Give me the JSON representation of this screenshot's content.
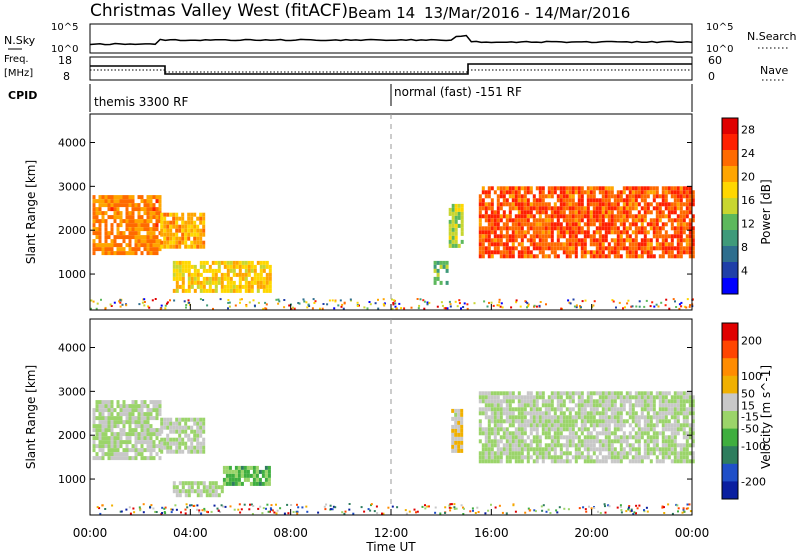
{
  "header": {
    "title": "Christmas Valley West (fitACF)",
    "beam": "Beam 14",
    "date_range": "13/Mar/2016 - 14/Mar/2016"
  },
  "top_panels": {
    "nsky_label": "N.Sky",
    "nsky_ticks": [
      "10^5",
      "10^0"
    ],
    "nsearch_label": "N.Search",
    "nsearch_ticks": [
      "10^5",
      "10^0"
    ],
    "freq_label": "Freq.",
    "freq_unit": "[MHz]",
    "freq_ticks": [
      "18",
      "8"
    ],
    "nave_label": "Nave",
    "nave_ticks": [
      "60",
      "0"
    ],
    "cpid_label": "CPID",
    "cpid_segments": [
      {
        "label": "themis 3300 RF",
        "start_hour": 0,
        "end_hour": 12
      },
      {
        "label": "normal (fast) -151 RF",
        "start_hour": 12,
        "end_hour": 24
      }
    ]
  },
  "chart_data": [
    {
      "type": "heatmap",
      "name": "power",
      "ylabel": "Slant Range [km]",
      "xlabel": "Time UT",
      "xlim": [
        0,
        24
      ],
      "ylim": [
        180,
        4650
      ],
      "x_ticks": [
        "00:00",
        "04:00",
        "08:00",
        "12:00",
        "16:00",
        "20:00",
        "00:00"
      ],
      "x_tick_hours": [
        0,
        4,
        8,
        12,
        16,
        20,
        24
      ],
      "y_ticks": [
        1000,
        2000,
        3000,
        4000
      ],
      "colorbar": {
        "label": "Power [dB]",
        "range": [
          0,
          30
        ],
        "ticks": [
          "4",
          "8",
          "12",
          "16",
          "20",
          "24",
          "28"
        ],
        "tick_values": [
          4,
          8,
          12,
          16,
          20,
          24,
          28
        ],
        "colors": [
          "#0000ff",
          "#1f3fa8",
          "#2e6e8e",
          "#3f9a7a",
          "#5cb85c",
          "#c8d630",
          "#ffd700",
          "#ffa500",
          "#ff6a00",
          "#ff2000",
          "#e00000"
        ]
      },
      "regions": [
        {
          "x": [
            0.1,
            2.8
          ],
          "y": [
            1500,
            2800
          ],
          "value": 22
        },
        {
          "x": [
            2.8,
            4.5
          ],
          "y": [
            1600,
            2400
          ],
          "value": 20
        },
        {
          "x": [
            3.3,
            7.2
          ],
          "y": [
            650,
            1300
          ],
          "value": 18
        },
        {
          "x": [
            13.7,
            14.2
          ],
          "y": [
            800,
            1300
          ],
          "value": 12
        },
        {
          "x": [
            14.3,
            14.8
          ],
          "y": [
            1600,
            2600
          ],
          "value": 15
        },
        {
          "x": [
            15.5,
            24
          ],
          "y": [
            1400,
            3000
          ],
          "value": 24
        }
      ]
    },
    {
      "type": "heatmap",
      "name": "velocity",
      "ylabel": "Slant Range [km]",
      "xlabel": "Time UT",
      "xlim": [
        0,
        24
      ],
      "ylim": [
        180,
        4650
      ],
      "x_ticks": [
        "00:00",
        "04:00",
        "08:00",
        "12:00",
        "16:00",
        "20:00",
        "00:00"
      ],
      "x_tick_hours": [
        0,
        4,
        8,
        12,
        16,
        20,
        24
      ],
      "y_ticks": [
        1000,
        2000,
        3000,
        4000
      ],
      "colorbar": {
        "label": "Velocity [m s^-1]",
        "range": [
          -250,
          250
        ],
        "ticks": [
          "200",
          "100",
          "50",
          "15",
          "-15",
          "-50",
          "-100",
          "-200"
        ],
        "tick_values": [
          200,
          100,
          50,
          15,
          -15,
          -50,
          -100,
          -200
        ],
        "colors": [
          "#0a1fa0",
          "#1f4fc8",
          "#2e7d5e",
          "#3fae3f",
          "#9bd46a",
          "#c8c8c8",
          "#f0b000",
          "#ff8c00",
          "#ff4500",
          "#e00000"
        ]
      },
      "regions": [
        {
          "x": [
            0.1,
            2.8
          ],
          "y": [
            1500,
            2800
          ],
          "value": 0
        },
        {
          "x": [
            2.8,
            4.5
          ],
          "y": [
            1600,
            2400
          ],
          "value": 0
        },
        {
          "x": [
            3.3,
            5.3
          ],
          "y": [
            650,
            950
          ],
          "value": 0
        },
        {
          "x": [
            5.3,
            7.2
          ],
          "y": [
            850,
            1300
          ],
          "value": -60
        },
        {
          "x": [
            14.4,
            14.8
          ],
          "y": [
            1600,
            2600
          ],
          "value": 40
        },
        {
          "x": [
            15.5,
            24
          ],
          "y": [
            1400,
            3000
          ],
          "value": 0
        }
      ]
    }
  ]
}
